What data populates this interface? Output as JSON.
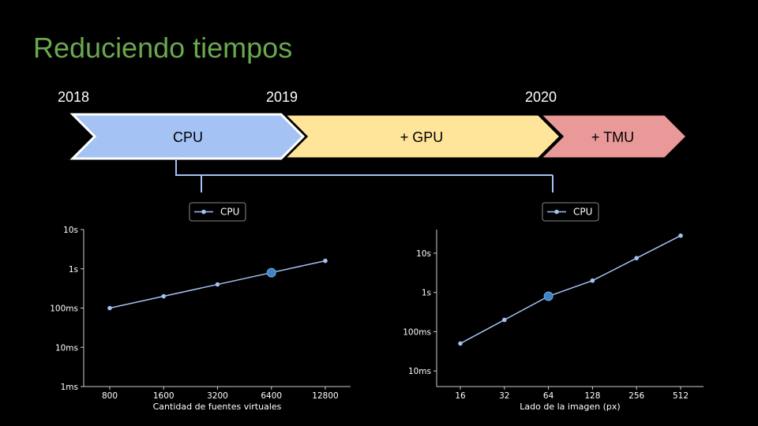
{
  "slide": {
    "title": "Reduciendo tiempos",
    "years": [
      "2018",
      "2019",
      "2020"
    ]
  },
  "timeline": {
    "phases": [
      {
        "label": "CPU",
        "color": "#a4c2f4"
      },
      {
        "label": "+ GPU",
        "color": "#ffe599"
      },
      {
        "label": "+ TMU",
        "color": "#ea9999"
      }
    ],
    "bracket_color": "#a4c2f4"
  },
  "chart_data": [
    {
      "type": "line",
      "scale_y": "log",
      "xlabel": "Cantidad de fuentes virtuales",
      "ylabel": "",
      "categories": [
        "800",
        "1600",
        "3200",
        "6400",
        "12800"
      ],
      "series": [
        {
          "name": "CPU",
          "values": [
            0.1,
            0.2,
            0.4,
            0.8,
            1.6
          ],
          "color": "#a4c2f4"
        }
      ],
      "highlight_index": 3,
      "highlight_color": "#3d85c6",
      "y_ticks": [
        0.001,
        0.01,
        0.1,
        1,
        10
      ],
      "y_tick_labels": [
        "1ms",
        "10ms",
        "100ms",
        "1s",
        "10s"
      ],
      "ylim": [
        0.001,
        10
      ],
      "legend": "top-center",
      "grid": false
    },
    {
      "type": "line",
      "scale_y": "log",
      "xlabel": "Lado de la imagen (px)",
      "ylabel": "",
      "categories": [
        "16",
        "32",
        "64",
        "128",
        "256",
        "512"
      ],
      "series": [
        {
          "name": "CPU",
          "values": [
            0.05,
            0.2,
            0.8,
            2.0,
            7.5,
            28
          ],
          "color": "#a4c2f4"
        }
      ],
      "highlight_index": 2,
      "highlight_color": "#3d85c6",
      "y_ticks": [
        0.01,
        0.1,
        1,
        10
      ],
      "y_tick_labels": [
        "10ms",
        "100ms",
        "1s",
        "10s"
      ],
      "ylim": [
        0.004,
        40
      ],
      "legend": "top-center",
      "grid": false
    }
  ]
}
